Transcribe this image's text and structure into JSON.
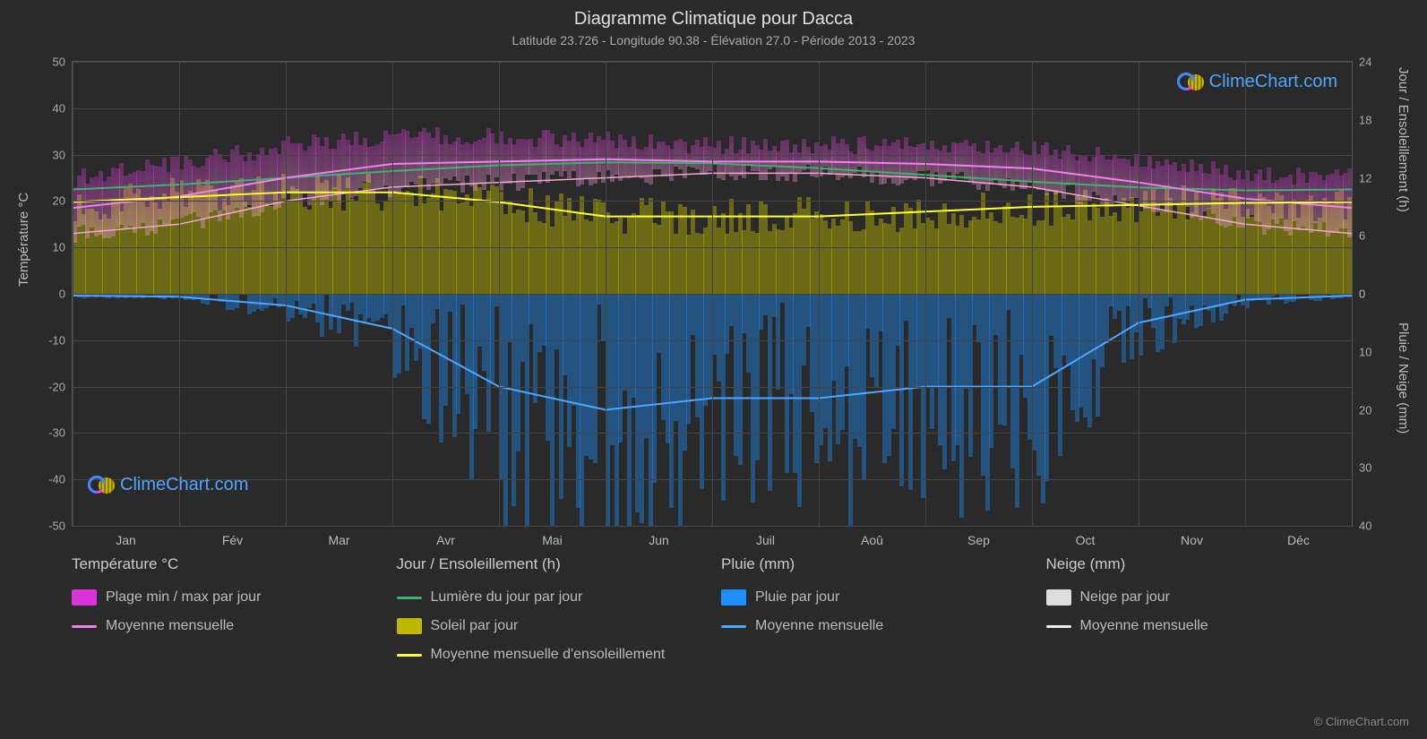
{
  "title": "Diagramme Climatique pour Dacca",
  "subtitle": "Latitude 23.726 - Longitude 90.38 - Élévation 27.0 - Période 2013 - 2023",
  "axis_left_title": "Température °C",
  "axis_right_top_title": "Jour / Ensoleillement (h)",
  "axis_right_bot_title": "Pluie / Neige (mm)",
  "copyright": "© ClimeChart.com",
  "logo_text": "ClimeChart.com",
  "chart": {
    "background": "#2a2a2a",
    "grid_color": "#444444",
    "left_axis": {
      "min": -50,
      "max": 50,
      "step": 10,
      "ticks": [
        50,
        40,
        30,
        20,
        10,
        0,
        -10,
        -20,
        -30,
        -40,
        -50
      ]
    },
    "right_axis_top": {
      "min": 0,
      "max": 24,
      "step": 6,
      "ticks": [
        24,
        18,
        12,
        6,
        0
      ]
    },
    "right_axis_bot": {
      "min": 0,
      "max": 40,
      "step": 10,
      "ticks": [
        0,
        10,
        20,
        30,
        40
      ]
    },
    "months": [
      "Jan",
      "Fév",
      "Mar",
      "Avr",
      "Mai",
      "Jun",
      "Juil",
      "Aoû",
      "Sep",
      "Oct",
      "Nov",
      "Déc"
    ],
    "colors": {
      "temp_range": "#d933d9",
      "temp_range_inner": "#f5a5d5",
      "temp_mean": "#ee82ee",
      "daylight": "#3cb371",
      "sun_fill": "#bdb700",
      "sun_mean": "#ffff33",
      "rain_fill": "#1e90ff",
      "rain_mean": "#4da6ff",
      "snow_fill": "#dddddd",
      "snow_mean": "#eeeeee"
    },
    "temp_mean_monthly": [
      18.5,
      21,
      25,
      28,
      28.5,
      29,
      28.5,
      28.5,
      28,
      27,
      24,
      20.5
    ],
    "temp_max_monthly": [
      25,
      28,
      32,
      34,
      34,
      33,
      32,
      32,
      32,
      31,
      29,
      26
    ],
    "temp_min_monthly": [
      13,
      15,
      20,
      23,
      24,
      25,
      26,
      26,
      25,
      23,
      19,
      15
    ],
    "daylight_monthly": [
      10.8,
      11.3,
      12,
      12.7,
      13.3,
      13.6,
      13.5,
      13,
      12.3,
      11.6,
      11,
      10.7
    ],
    "sun_mean_monthly": [
      9.5,
      10,
      10.5,
      10.5,
      9.5,
      8,
      8,
      8,
      8.5,
      9,
      9.2,
      9.4
    ],
    "rain_mean_monthly": [
      0.3,
      0.5,
      2,
      6,
      16,
      20,
      18,
      18,
      16,
      16,
      5,
      1
    ]
  },
  "legend": {
    "col1_header": "Température °C",
    "col1_item1": "Plage min / max par jour",
    "col1_item2": "Moyenne mensuelle",
    "col2_header": "Jour / Ensoleillement (h)",
    "col2_item1": "Lumière du jour par jour",
    "col2_item2": "Soleil par jour",
    "col2_item3": "Moyenne mensuelle d'ensoleillement",
    "col3_header": "Pluie (mm)",
    "col3_item1": "Pluie par jour",
    "col3_item2": "Moyenne mensuelle",
    "col4_header": "Neige (mm)",
    "col4_item1": "Neige par jour",
    "col4_item2": "Moyenne mensuelle"
  }
}
